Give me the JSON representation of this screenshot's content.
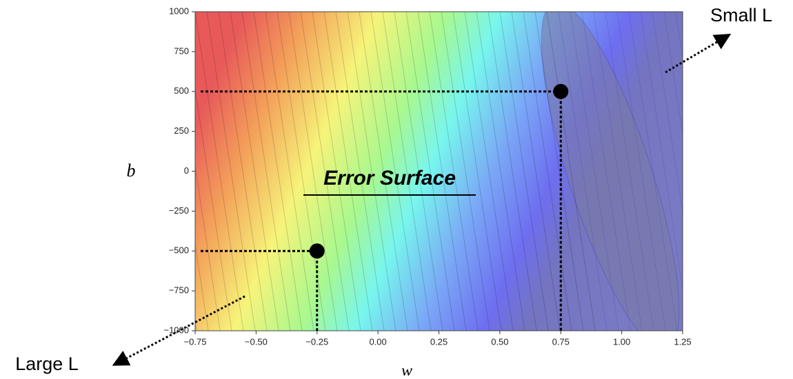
{
  "chart_data": {
    "type": "contour",
    "title": "Error Surface",
    "x_label": "w",
    "y_label": "b",
    "xlim": [
      -0.75,
      1.25
    ],
    "ylim": [
      -1000,
      1000
    ],
    "xticks": [
      {
        "value": -0.75,
        "label": "−0.75"
      },
      {
        "value": -0.5,
        "label": "−0.50"
      },
      {
        "value": -0.25,
        "label": "−0.25"
      },
      {
        "value": 0,
        "label": "0.00"
      },
      {
        "value": 0.25,
        "label": "0.25"
      },
      {
        "value": 0.5,
        "label": "0.50"
      },
      {
        "value": 0.75,
        "label": "0.75"
      },
      {
        "value": 1,
        "label": "1.00"
      },
      {
        "value": 1.25,
        "label": "1.25"
      }
    ],
    "yticks": [
      1000,
      750,
      500,
      250,
      0,
      {
        "value": -250,
        "label": "−250"
      },
      {
        "value": -500,
        "label": "−500"
      },
      {
        "value": -750,
        "label": "−750"
      },
      {
        "value": -1000,
        "label": "−1000"
      }
    ],
    "points": [
      {
        "x": 0.75,
        "y": 500
      },
      {
        "x": -0.25,
        "y": -500
      }
    ],
    "point_color": "#000000",
    "annotations": [
      "Small L",
      "Large L"
    ]
  }
}
